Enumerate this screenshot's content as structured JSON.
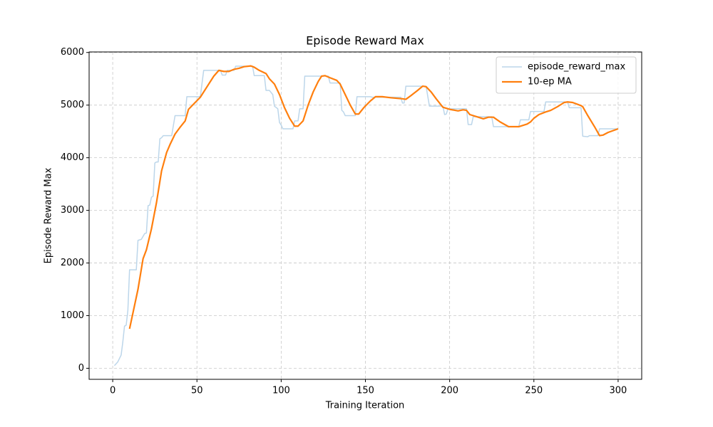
{
  "chart_data": {
    "type": "line",
    "title": "Episode Reward Max",
    "xlabel": "Training Iteration",
    "ylabel": "Episode Reward Max",
    "xlim": [
      -14,
      314
    ],
    "ylim": [
      -210,
      6010
    ],
    "xticks": [
      0,
      50,
      100,
      150,
      200,
      250,
      300
    ],
    "yticks": [
      0,
      1000,
      2000,
      3000,
      4000,
      5000,
      6000
    ],
    "grid": true,
    "legend": "upper right",
    "series": [
      {
        "name": "episode_reward_max",
        "color": "#bcd6ea",
        "width": 1.5,
        "x": [
          1,
          3,
          5,
          6,
          7,
          8,
          9,
          10,
          14,
          15,
          17,
          19,
          20,
          21,
          22,
          23,
          24,
          25,
          26,
          27,
          28,
          29,
          30,
          34,
          35,
          37,
          43,
          44,
          52,
          54,
          64,
          65,
          67,
          68,
          72,
          73,
          83,
          84,
          90,
          91,
          93,
          95,
          96,
          98,
          99,
          100,
          101,
          107,
          108,
          110,
          111,
          113,
          114,
          128,
          129,
          135,
          136,
          137,
          138,
          144,
          145,
          153,
          154,
          171,
          172,
          173,
          174,
          186,
          188,
          196,
          197,
          198,
          199,
          210,
          211,
          213,
          214,
          225,
          226,
          241,
          242,
          247,
          248,
          256,
          257,
          270,
          271,
          278,
          279,
          282,
          283,
          288,
          289,
          300
        ],
        "values": [
          50,
          120,
          250,
          500,
          800,
          820,
          1100,
          1870,
          1870,
          2430,
          2450,
          2560,
          2570,
          3090,
          3100,
          3250,
          3270,
          3900,
          3920,
          3920,
          4360,
          4380,
          4420,
          4420,
          4420,
          4800,
          4800,
          5160,
          5160,
          5660,
          5660,
          5570,
          5570,
          5660,
          5660,
          5740,
          5740,
          5560,
          5560,
          5280,
          5280,
          5200,
          4980,
          4930,
          4670,
          4620,
          4550,
          4550,
          4700,
          4700,
          4930,
          4930,
          5550,
          5550,
          5420,
          5420,
          4900,
          4870,
          4800,
          4800,
          5160,
          5160,
          5150,
          5150,
          5040,
          5040,
          5360,
          5360,
          4980,
          4980,
          4820,
          4830,
          4930,
          4930,
          4630,
          4630,
          4780,
          4780,
          4590,
          4590,
          4720,
          4720,
          4880,
          4880,
          5060,
          5060,
          4950,
          4950,
          4410,
          4400,
          4420,
          4420,
          4550,
          4550
        ]
      },
      {
        "name": "10-ep MA",
        "color": "#ff7f0e",
        "width": 2.2,
        "x": [
          10,
          13,
          15,
          18,
          20,
          23,
          26,
          29,
          32,
          34,
          37,
          40,
          43,
          45,
          48,
          52,
          56,
          60,
          63,
          66,
          69,
          72,
          75,
          78,
          82,
          84,
          87,
          91,
          93,
          96,
          99,
          102,
          105,
          108,
          110,
          113,
          116,
          119,
          122,
          124,
          126,
          129,
          133,
          135,
          138,
          141,
          144,
          146,
          149,
          153,
          156,
          160,
          165,
          172,
          174,
          177,
          181,
          184,
          186,
          189,
          192,
          196,
          200,
          205,
          208,
          210,
          212,
          216,
          220,
          223,
          226,
          230,
          235,
          241,
          246,
          248,
          250,
          253,
          257,
          260,
          264,
          268,
          270,
          273,
          278,
          279,
          282,
          286,
          289,
          291,
          294,
          300
        ],
        "values": [
          750,
          1200,
          1500,
          2080,
          2250,
          2650,
          3150,
          3750,
          4100,
          4250,
          4450,
          4580,
          4700,
          4920,
          5020,
          5150,
          5350,
          5550,
          5660,
          5640,
          5640,
          5680,
          5700,
          5730,
          5745,
          5720,
          5660,
          5600,
          5500,
          5400,
          5200,
          4950,
          4750,
          4600,
          4600,
          4700,
          5000,
          5250,
          5450,
          5550,
          5560,
          5520,
          5470,
          5400,
          5200,
          5000,
          4830,
          4830,
          4950,
          5080,
          5160,
          5160,
          5140,
          5120,
          5110,
          5180,
          5280,
          5360,
          5350,
          5250,
          5120,
          4960,
          4920,
          4890,
          4910,
          4900,
          4820,
          4780,
          4740,
          4770,
          4770,
          4680,
          4590,
          4590,
          4640,
          4680,
          4750,
          4820,
          4870,
          4900,
          4970,
          5050,
          5060,
          5050,
          4990,
          4970,
          4800,
          4590,
          4420,
          4430,
          4480,
          4550
        ]
      }
    ]
  }
}
